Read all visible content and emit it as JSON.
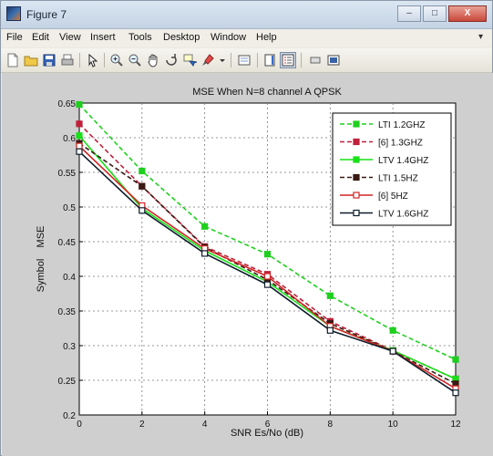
{
  "window": {
    "title": "Figure 7",
    "controls": [
      "–",
      "□",
      "X"
    ]
  },
  "menu": [
    "File",
    "Edit",
    "View",
    "Insert",
    "Tools",
    "Desktop",
    "Window",
    "Help"
  ],
  "toolbar": [
    {
      "icon": "new-figure-icon"
    },
    {
      "icon": "open-file-icon"
    },
    {
      "icon": "save-icon"
    },
    {
      "icon": "print-icon"
    },
    {
      "icon": "edit-plot-arrow-icon"
    },
    {
      "icon": "zoom-in-icon"
    },
    {
      "icon": "zoom-out-icon"
    },
    {
      "icon": "pan-hand-icon"
    },
    {
      "icon": "rotate-3d-icon"
    },
    {
      "icon": "data-cursor-icon"
    },
    {
      "icon": "brush-icon"
    },
    {
      "icon": "link-plot-icon"
    },
    {
      "icon": "insert-colorbar-icon"
    },
    {
      "icon": "insert-legend-icon"
    },
    {
      "icon": "hide-plot-tools-icon"
    },
    {
      "icon": "show-plot-tools-icon"
    }
  ],
  "chart_data": {
    "type": "line",
    "title": "MSE When N=8 channel A QPSK",
    "xlabel": "SNR Es/No (dB)",
    "ylabel": "Symbol    MSE",
    "xlim": [
      0,
      12
    ],
    "ylim": [
      0.2,
      0.65
    ],
    "xticks": [
      "0",
      "2",
      "4",
      "6",
      "8",
      "10",
      "12"
    ],
    "yticks": [
      "0.2",
      "0.25",
      "0.3",
      "0.35",
      "0.4",
      "0.45",
      "0.5",
      "0.55",
      "0.6",
      "0.65"
    ],
    "grid": true,
    "legend_position": "top-right",
    "x": [
      0,
      2,
      4,
      6,
      8,
      10,
      12
    ],
    "series": [
      {
        "name": "LTI 1.2GHZ",
        "values": [
          0.648,
          0.552,
          0.472,
          0.432,
          0.372,
          0.322,
          0.28
        ],
        "color": "#1fcf1f",
        "dash": "dashed",
        "marker": "square-filled"
      },
      {
        "name": "[6] 1.3GHZ",
        "values": [
          0.62,
          0.53,
          0.443,
          0.403,
          0.335,
          0.293,
          0.252
        ],
        "color": "#c0203a",
        "dash": "dashed",
        "marker": "square-filled"
      },
      {
        "name": "LTV 1.4GHZ",
        "values": [
          0.603,
          0.498,
          0.437,
          0.392,
          0.328,
          0.293,
          0.252
        ],
        "color": "#18e018",
        "dash": "solid",
        "marker": "square-filled"
      },
      {
        "name": "LTI 1.5HZ",
        "values": [
          0.592,
          0.53,
          0.442,
          0.395,
          0.332,
          0.292,
          0.245
        ],
        "color": "#3a1a14",
        "dash": "dashed",
        "marker": "square-filled"
      },
      {
        "name": "[6] 5HZ",
        "values": [
          0.588,
          0.502,
          0.44,
          0.4,
          0.328,
          0.292,
          0.238
        ],
        "color": "#d02525",
        "dash": "solid",
        "marker": "square-open"
      },
      {
        "name": "LTV 1.6GHZ",
        "values": [
          0.58,
          0.495,
          0.433,
          0.388,
          0.322,
          0.292,
          0.232
        ],
        "color": "#0e1d2a",
        "dash": "solid",
        "marker": "square-open"
      }
    ]
  }
}
